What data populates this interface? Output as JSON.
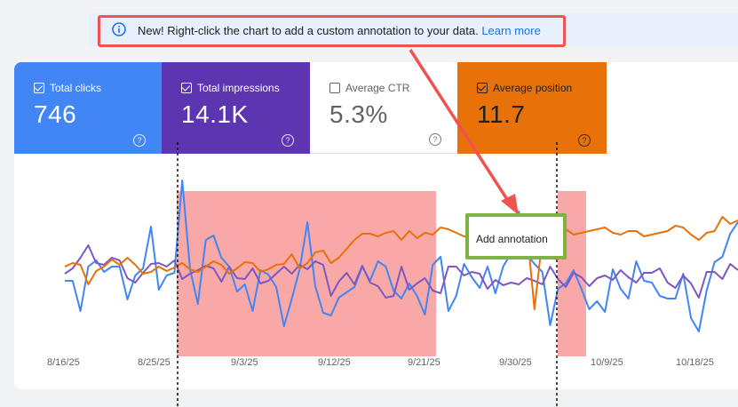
{
  "banner": {
    "text": "New! Right-click the chart to add a custom annotation to your data. ",
    "link": "Learn more",
    "icon": "info-icon"
  },
  "metrics": [
    {
      "label": "Total clicks",
      "value": "746",
      "checked": true,
      "color": "#4285f4"
    },
    {
      "label": "Total impressions",
      "value": "14.1K",
      "checked": true,
      "color": "#5e35b1"
    },
    {
      "label": "Average CTR",
      "value": "5.3%",
      "checked": false,
      "color": "#ffffff"
    },
    {
      "label": "Average position",
      "value": "11.7",
      "checked": true,
      "color": "#e8710a"
    }
  ],
  "annotation_menu": {
    "item": "Add annotation"
  },
  "chart_data": {
    "type": "line",
    "x_ticks": [
      "8/16/25",
      "8/25/25",
      "9/3/25",
      "9/12/25",
      "9/21/25",
      "9/30/25",
      "10/9/25",
      "10/18/25"
    ],
    "highlighted_ranges": [
      [
        "8/25/25",
        "9/21/25"
      ],
      [
        "10/5/25",
        "10/8/25"
      ]
    ],
    "series": [
      {
        "name": "Total clicks",
        "color": "#4285f4",
        "values": [
          316,
          316,
          350,
          300,
          293,
          306,
          300,
          300,
          337,
          310,
          302,
          255,
          326,
          310,
          307,
          203,
          303,
          342,
          270,
          265,
          290,
          300,
          328,
          320,
          350,
          304,
          309,
          323,
          367,
          336,
          303,
          250,
          322,
          352,
          355,
          335,
          329,
          323,
          300,
          316,
          294,
          300,
          327,
          336,
          319,
          333,
          354,
          298,
          289,
          350,
          333,
          297,
          312,
          324,
          300,
          330,
          300,
          285,
          238,
          286,
          297,
          306,
          366,
          325,
          319,
          304,
          325,
          348,
          339,
          351,
          303,
          325,
          336,
          294,
          316,
          318,
          333,
          336,
          336,
          308,
          358,
          373,
          327,
          295,
          289,
          263,
          250
        ]
      },
      {
        "name": "Total impressions",
        "color": "#7e57c2",
        "values": [
          308,
          302,
          290,
          276,
          296,
          298,
          290,
          293,
          313,
          318,
          307,
          297,
          296,
          300,
          293,
          314,
          308,
          304,
          299,
          302,
          317,
          300,
          313,
          314,
          302,
          319,
          316,
          308,
          300,
          308,
          298,
          303,
          294,
          298,
          333,
          317,
          307,
          320,
          299,
          318,
          322,
          335,
          333,
          300,
          326,
          319,
          313,
          327,
          330,
          300,
          300,
          310,
          306,
          308,
          325,
          315,
          321,
          318,
          320,
          313,
          316,
          320,
          300,
          314,
          323,
          307,
          312,
          322,
          313,
          310,
          315,
          304,
          312,
          318,
          307,
          307,
          302,
          318,
          324,
          310,
          319,
          335,
          306,
          306,
          314,
          297,
          304
        ]
      },
      {
        "name": "Average position",
        "color": "#e8710a",
        "values": [
          300,
          296,
          298,
          320,
          305,
          300,
          292,
          298,
          290,
          298,
          308,
          306,
          300,
          305,
          301,
          296,
          303,
          306,
          300,
          294,
          298,
          308,
          302,
          295,
          296,
          306,
          303,
          298,
          297,
          286,
          302,
          296,
          284,
          282,
          296,
          290,
          280,
          270,
          263,
          263,
          266,
          262,
          260,
          270,
          260,
          268,
          262,
          264,
          256,
          258,
          262,
          266,
          268,
          258,
          255,
          254,
          254,
          262,
          258,
          255,
          348,
          268,
          262,
          270,
          258,
          264,
          262,
          260,
          258,
          256,
          262,
          264,
          260,
          260,
          266,
          264,
          262,
          260,
          254,
          256,
          264,
          270,
          262,
          260,
          244,
          252,
          248
        ]
      }
    ],
    "grid": false
  }
}
